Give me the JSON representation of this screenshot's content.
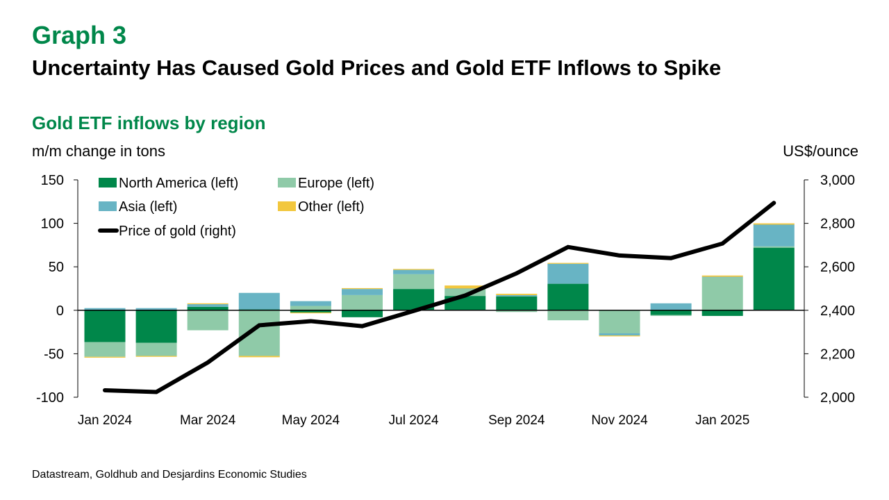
{
  "header": {
    "graph_label": "Graph 3",
    "title": "Uncertainty Has Caused Gold Prices and Gold ETF Inflows to Spike"
  },
  "footer": {
    "source": "Datastream, Goldhub and Desjardins Economic Studies"
  },
  "chart_data": {
    "type": "bar",
    "stacked": true,
    "title": "Gold ETF inflows by region",
    "ylabel": "m/m change in tons",
    "y2label": "US$/ounce",
    "ylim": [
      -100,
      150
    ],
    "y2lim": [
      2000,
      3000
    ],
    "yticks": [
      150,
      100,
      50,
      0,
      -50,
      -100
    ],
    "y2ticks": [
      3000,
      2800,
      2600,
      2400,
      2200,
      2000
    ],
    "ytick_labels": [
      "150",
      "100",
      "50",
      "0",
      "-50",
      "-100"
    ],
    "y2tick_labels": [
      "3,000",
      "2,800",
      "2,600",
      "2,400",
      "2,200",
      "2,000"
    ],
    "categories": [
      "Jan 2024",
      "Feb 2024",
      "Mar 2024",
      "Apr 2024",
      "May 2024",
      "Jun 2024",
      "Jul 2024",
      "Aug 2024",
      "Sep 2024",
      "Oct 2024",
      "Nov 2024",
      "Dec 2024",
      "Jan 2025",
      "Feb 2025"
    ],
    "xtick_labels": [
      "Jan 2024",
      "Mar 2024",
      "May 2024",
      "Jul 2024",
      "Sep 2024",
      "Nov 2024",
      "Jan 2025"
    ],
    "xtick_indices": [
      0,
      2,
      4,
      6,
      8,
      10,
      12
    ],
    "grid": false,
    "legend_position": "top-left",
    "series": [
      {
        "name": "North America (left)",
        "color": "#00874A",
        "axis": "left",
        "kind": "bar",
        "values": [
          -36.5,
          -37.5,
          4,
          1,
          -2.5,
          -8,
          24.5,
          16.5,
          16,
          30.5,
          0,
          -5.5,
          -6.5,
          72
        ]
      },
      {
        "name": "Europe (left)",
        "color": "#8FCAA8",
        "axis": "left",
        "kind": "bar",
        "values": [
          -17,
          -15,
          -23,
          -52.5,
          5,
          17.5,
          17,
          8,
          -2,
          -11.5,
          -26.5,
          -1,
          38,
          1.5
        ]
      },
      {
        "name": "Asia (left)",
        "color": "#68B4C4",
        "axis": "left",
        "kind": "bar",
        "values": [
          2.5,
          2.5,
          3,
          19,
          5.5,
          7,
          5,
          0.5,
          1.5,
          23,
          -2.5,
          8,
          0.5,
          25
        ]
      },
      {
        "name": "Other (left)",
        "color": "#F2C73E",
        "axis": "left",
        "kind": "bar",
        "values": [
          -1,
          -1,
          1,
          -1.5,
          -1,
          1,
          1,
          3.5,
          1.5,
          1,
          -1,
          0,
          1.5,
          1.5
        ]
      },
      {
        "name": "Price of gold (right)",
        "color": "#000000",
        "axis": "right",
        "kind": "line",
        "values": [
          2032,
          2024,
          2160,
          2331,
          2350,
          2327,
          2397,
          2468,
          2570,
          2691,
          2652,
          2640,
          2707,
          2894
        ]
      }
    ]
  }
}
